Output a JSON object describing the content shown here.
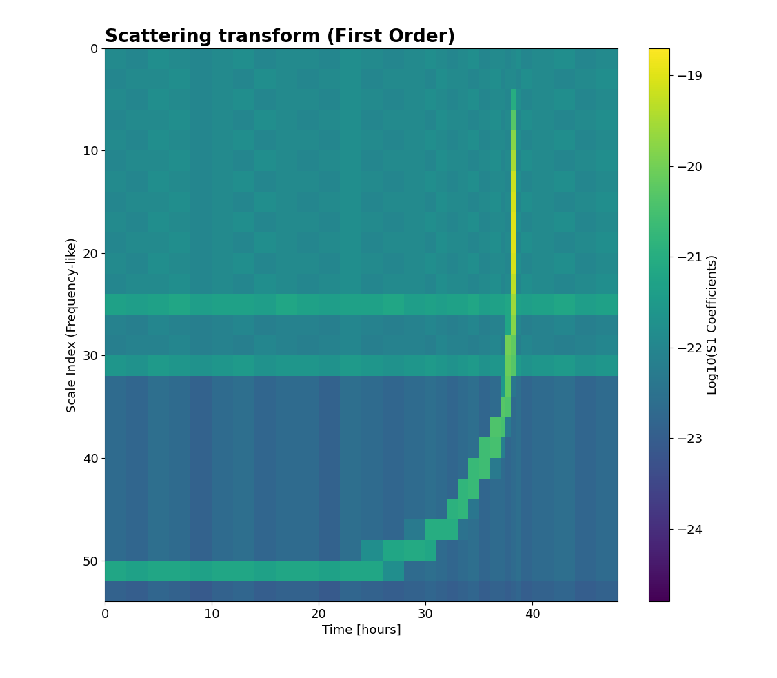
{
  "chart_data": {
    "type": "heatmap",
    "title": "Scattering transform (First Order)",
    "x_label": "Time [hours]",
    "y_label": "Scale Index (Frequency-like)",
    "xlim": [
      0,
      48
    ],
    "xticks": [
      0,
      10,
      20,
      30,
      40
    ],
    "ylim": [
      54,
      0
    ],
    "yticks": [
      0,
      10,
      20,
      30,
      40,
      50
    ],
    "x_edges": [
      0,
      2,
      4,
      6,
      8,
      10,
      12,
      14,
      16,
      18,
      20,
      22,
      24,
      26,
      28,
      30,
      31,
      32,
      33,
      34,
      35,
      36,
      37,
      37.5,
      38,
      38.5,
      39,
      40,
      42,
      44,
      46,
      48
    ],
    "y_edges": [
      0,
      2,
      4,
      6,
      8,
      10,
      12,
      14,
      16,
      18,
      20,
      22,
      24,
      26,
      28,
      30,
      32,
      34,
      36,
      38,
      40,
      42,
      44,
      46,
      48,
      50,
      52,
      54
    ],
    "cells": [
      [
        -21.9,
        -22.0,
        -21.8,
        -21.9,
        -22.0,
        -21.9,
        -21.8,
        -22.0,
        -21.9,
        -21.9,
        -22.0,
        -21.8,
        -21.9,
        -22.0,
        -21.9,
        -21.8,
        -21.9,
        -22.0,
        -21.9,
        -21.8,
        -22.0,
        -21.9,
        -21.9,
        -22.0,
        -21.9,
        -21.8,
        -22.0,
        -21.9,
        -21.8,
        -22.0,
        -21.9
      ],
      [
        -22.0,
        -21.9,
        -21.9,
        -21.8,
        -22.0,
        -21.9,
        -22.0,
        -21.8,
        -21.9,
        -22.0,
        -21.9,
        -21.8,
        -22.0,
        -21.9,
        -21.9,
        -22.0,
        -21.8,
        -21.9,
        -21.9,
        -22.0,
        -21.9,
        -21.8,
        -22.0,
        -21.9,
        -21.9,
        -22.0,
        -21.8,
        -21.9,
        -22.0,
        -21.9,
        -21.8
      ],
      [
        -21.9,
        -22.0,
        -21.8,
        -21.9,
        -22.0,
        -21.9,
        -21.8,
        -22.0,
        -21.9,
        -21.9,
        -22.0,
        -21.8,
        -21.9,
        -22.0,
        -21.9,
        -21.8,
        -21.9,
        -22.0,
        -21.9,
        -21.8,
        -22.0,
        -21.9,
        -21.9,
        -22.0,
        -21.0,
        -21.8,
        -22.0,
        -21.9,
        -21.8,
        -22.0,
        -21.9
      ],
      [
        -22.0,
        -21.9,
        -21.9,
        -21.8,
        -22.0,
        -21.9,
        -22.0,
        -21.8,
        -21.9,
        -22.0,
        -21.9,
        -21.8,
        -22.0,
        -21.9,
        -21.9,
        -22.0,
        -21.8,
        -21.9,
        -21.9,
        -22.0,
        -21.9,
        -21.8,
        -22.0,
        -21.9,
        -20.3,
        -22.0,
        -21.8,
        -21.9,
        -22.0,
        -21.9,
        -21.8
      ],
      [
        -21.9,
        -22.0,
        -21.8,
        -21.9,
        -22.0,
        -21.9,
        -21.8,
        -22.0,
        -21.9,
        -21.9,
        -22.0,
        -21.8,
        -21.9,
        -22.0,
        -21.9,
        -21.8,
        -21.9,
        -22.0,
        -21.9,
        -21.8,
        -22.0,
        -21.9,
        -21.9,
        -22.0,
        -19.8,
        -21.8,
        -22.0,
        -21.9,
        -21.8,
        -22.0,
        -21.9
      ],
      [
        -22.0,
        -21.9,
        -21.9,
        -21.8,
        -22.0,
        -21.9,
        -22.0,
        -21.8,
        -21.9,
        -22.0,
        -21.9,
        -21.8,
        -22.0,
        -21.9,
        -21.9,
        -22.0,
        -21.8,
        -21.9,
        -21.9,
        -22.0,
        -21.9,
        -21.8,
        -22.0,
        -21.9,
        -19.5,
        -22.0,
        -21.8,
        -21.9,
        -22.0,
        -21.9,
        -21.8
      ],
      [
        -21.9,
        -22.0,
        -21.8,
        -21.9,
        -22.0,
        -21.9,
        -21.8,
        -22.0,
        -21.9,
        -21.9,
        -22.0,
        -21.8,
        -21.9,
        -22.0,
        -21.9,
        -21.8,
        -21.9,
        -22.0,
        -21.9,
        -21.8,
        -22.0,
        -21.9,
        -21.9,
        -22.0,
        -19.2,
        -21.8,
        -22.0,
        -21.9,
        -21.8,
        -22.0,
        -21.9
      ],
      [
        -22.0,
        -21.9,
        -21.9,
        -21.8,
        -22.0,
        -21.9,
        -22.0,
        -21.8,
        -21.9,
        -22.0,
        -21.9,
        -21.8,
        -22.0,
        -21.9,
        -21.9,
        -22.0,
        -21.8,
        -21.9,
        -21.9,
        -22.0,
        -21.9,
        -21.8,
        -22.0,
        -21.9,
        -19.1,
        -22.0,
        -21.8,
        -21.9,
        -22.0,
        -21.9,
        -21.8
      ],
      [
        -21.9,
        -22.0,
        -21.8,
        -21.9,
        -22.0,
        -21.9,
        -21.8,
        -22.0,
        -21.9,
        -21.9,
        -22.0,
        -21.8,
        -21.9,
        -22.0,
        -21.9,
        -21.8,
        -21.9,
        -22.0,
        -21.9,
        -21.8,
        -22.0,
        -21.9,
        -21.9,
        -22.0,
        -19.0,
        -21.8,
        -22.0,
        -21.9,
        -21.8,
        -22.0,
        -21.9
      ],
      [
        -22.0,
        -21.9,
        -21.9,
        -21.8,
        -22.0,
        -21.9,
        -22.0,
        -21.8,
        -21.9,
        -22.0,
        -21.9,
        -21.8,
        -22.0,
        -21.9,
        -21.9,
        -22.0,
        -21.8,
        -21.9,
        -21.9,
        -22.0,
        -21.9,
        -21.8,
        -22.0,
        -21.9,
        -19.0,
        -22.0,
        -21.8,
        -21.9,
        -22.0,
        -21.9,
        -21.8
      ],
      [
        -21.9,
        -22.0,
        -21.8,
        -21.9,
        -22.0,
        -21.9,
        -21.8,
        -22.0,
        -21.9,
        -21.9,
        -22.0,
        -21.8,
        -21.9,
        -22.0,
        -21.9,
        -21.8,
        -21.9,
        -22.0,
        -21.9,
        -21.8,
        -22.0,
        -21.9,
        -21.9,
        -22.0,
        -19.1,
        -21.8,
        -22.0,
        -21.9,
        -21.8,
        -22.0,
        -21.9
      ],
      [
        -22.0,
        -21.9,
        -21.9,
        -21.8,
        -22.0,
        -21.9,
        -22.0,
        -21.8,
        -21.9,
        -22.0,
        -21.9,
        -21.8,
        -22.0,
        -21.9,
        -21.9,
        -22.0,
        -21.8,
        -21.9,
        -21.9,
        -22.0,
        -21.9,
        -21.8,
        -22.0,
        -21.9,
        -19.3,
        -22.0,
        -21.8,
        -21.9,
        -22.0,
        -21.9,
        -21.8
      ],
      [
        -21.3,
        -21.4,
        -21.3,
        -21.2,
        -21.4,
        -21.3,
        -21.3,
        -21.4,
        -21.2,
        -21.3,
        -21.4,
        -21.3,
        -21.3,
        -21.2,
        -21.4,
        -21.3,
        -21.4,
        -21.3,
        -21.3,
        -21.2,
        -21.4,
        -21.3,
        -21.3,
        -21.2,
        -19.6,
        -21.3,
        -21.4,
        -21.3,
        -21.2,
        -21.4,
        -21.3
      ],
      [
        -22.1,
        -22.2,
        -22.0,
        -22.1,
        -22.2,
        -22.1,
        -22.0,
        -22.2,
        -22.1,
        -22.1,
        -22.2,
        -22.0,
        -22.1,
        -22.2,
        -22.1,
        -22.0,
        -22.1,
        -22.2,
        -22.1,
        -22.0,
        -22.2,
        -22.1,
        -22.1,
        -21.2,
        -19.8,
        -22.0,
        -22.2,
        -22.1,
        -22.0,
        -22.2,
        -22.1
      ],
      [
        -22.2,
        -22.1,
        -22.1,
        -22.0,
        -22.2,
        -22.1,
        -22.2,
        -22.0,
        -22.1,
        -22.2,
        -22.1,
        -22.0,
        -22.2,
        -22.1,
        -22.1,
        -22.2,
        -22.0,
        -22.1,
        -22.1,
        -22.2,
        -22.1,
        -22.0,
        -22.2,
        -20.0,
        -20.2,
        -22.2,
        -22.0,
        -22.1,
        -22.2,
        -22.1,
        -22.0
      ],
      [
        -21.6,
        -21.7,
        -21.5,
        -21.6,
        -21.7,
        -21.6,
        -21.5,
        -21.7,
        -21.6,
        -21.6,
        -21.7,
        -21.5,
        -21.6,
        -21.7,
        -21.6,
        -21.5,
        -21.6,
        -21.7,
        -21.6,
        -21.5,
        -21.7,
        -21.6,
        -21.6,
        -20.1,
        -20.3,
        -21.5,
        -21.7,
        -21.6,
        -21.5,
        -21.7,
        -21.6
      ],
      [
        -22.7,
        -22.8,
        -22.6,
        -22.7,
        -22.9,
        -22.7,
        -22.6,
        -22.8,
        -22.7,
        -22.7,
        -22.9,
        -22.6,
        -22.7,
        -22.8,
        -22.7,
        -22.6,
        -22.7,
        -22.8,
        -22.7,
        -22.6,
        -22.8,
        -22.7,
        -21.5,
        -20.2,
        -22.4,
        -22.6,
        -22.8,
        -22.7,
        -22.6,
        -22.8,
        -22.7
      ],
      [
        -22.7,
        -22.8,
        -22.6,
        -22.7,
        -22.9,
        -22.7,
        -22.6,
        -22.8,
        -22.7,
        -22.7,
        -22.9,
        -22.6,
        -22.7,
        -22.8,
        -22.7,
        -22.6,
        -22.7,
        -22.8,
        -22.7,
        -22.6,
        -22.8,
        -22.7,
        -20.3,
        -20.4,
        -22.7,
        -22.6,
        -22.8,
        -22.7,
        -22.6,
        -22.8,
        -22.7
      ],
      [
        -22.7,
        -22.8,
        -22.6,
        -22.7,
        -22.9,
        -22.7,
        -22.6,
        -22.8,
        -22.7,
        -22.7,
        -22.9,
        -22.6,
        -22.7,
        -22.8,
        -22.7,
        -22.6,
        -22.7,
        -22.8,
        -22.7,
        -22.6,
        -22.8,
        -20.4,
        -20.5,
        -22.3,
        -22.7,
        -22.6,
        -22.8,
        -22.7,
        -22.6,
        -22.8,
        -22.7
      ],
      [
        -22.7,
        -22.8,
        -22.6,
        -22.7,
        -22.9,
        -22.7,
        -22.6,
        -22.8,
        -22.7,
        -22.7,
        -22.9,
        -22.6,
        -22.7,
        -22.8,
        -22.7,
        -22.6,
        -22.7,
        -22.8,
        -22.7,
        -22.6,
        -20.6,
        -20.5,
        -22.2,
        -22.8,
        -22.7,
        -22.6,
        -22.8,
        -22.7,
        -22.6,
        -22.8,
        -22.7
      ],
      [
        -22.7,
        -22.8,
        -22.6,
        -22.7,
        -22.9,
        -22.7,
        -22.6,
        -22.8,
        -22.7,
        -22.7,
        -22.9,
        -22.6,
        -22.7,
        -22.8,
        -22.7,
        -22.6,
        -22.7,
        -22.8,
        -22.7,
        -20.7,
        -20.6,
        -22.3,
        -22.7,
        -22.8,
        -22.7,
        -22.6,
        -22.8,
        -22.7,
        -22.6,
        -22.8,
        -22.7
      ],
      [
        -22.7,
        -22.8,
        -22.6,
        -22.7,
        -22.9,
        -22.7,
        -22.6,
        -22.8,
        -22.7,
        -22.7,
        -22.9,
        -22.6,
        -22.7,
        -22.8,
        -22.7,
        -22.6,
        -22.7,
        -22.8,
        -20.8,
        -20.7,
        -22.8,
        -22.7,
        -22.7,
        -22.8,
        -22.7,
        -22.6,
        -22.8,
        -22.7,
        -22.6,
        -22.8,
        -22.7
      ],
      [
        -22.7,
        -22.8,
        -22.6,
        -22.7,
        -22.9,
        -22.7,
        -22.6,
        -22.8,
        -22.7,
        -22.7,
        -22.9,
        -22.6,
        -22.7,
        -22.8,
        -22.7,
        -22.6,
        -22.7,
        -20.9,
        -20.8,
        -22.4,
        -22.8,
        -22.7,
        -22.7,
        -22.8,
        -22.7,
        -22.6,
        -22.8,
        -22.7,
        -22.6,
        -22.8,
        -22.7
      ],
      [
        -22.7,
        -22.8,
        -22.6,
        -22.7,
        -22.9,
        -22.7,
        -22.6,
        -22.8,
        -22.7,
        -22.7,
        -22.9,
        -22.6,
        -22.7,
        -22.8,
        -22.3,
        -21.0,
        -21.0,
        -21.0,
        -22.5,
        -22.6,
        -22.8,
        -22.7,
        -22.7,
        -22.8,
        -22.7,
        -22.6,
        -22.8,
        -22.7,
        -22.6,
        -22.8,
        -22.7
      ],
      [
        -22.7,
        -22.8,
        -22.6,
        -22.7,
        -22.9,
        -22.7,
        -22.6,
        -22.8,
        -22.7,
        -22.7,
        -22.9,
        -22.6,
        -21.8,
        -21.2,
        -21.1,
        -21.2,
        -22.7,
        -22.8,
        -22.7,
        -22.6,
        -22.8,
        -22.7,
        -22.7,
        -22.8,
        -22.7,
        -22.6,
        -22.8,
        -22.7,
        -22.6,
        -22.8,
        -22.7
      ],
      [
        -21.2,
        -21.3,
        -21.2,
        -21.2,
        -21.3,
        -21.2,
        -21.2,
        -21.3,
        -21.2,
        -21.2,
        -21.3,
        -21.2,
        -21.2,
        -21.8,
        -22.7,
        -22.6,
        -22.7,
        -22.8,
        -22.7,
        -22.6,
        -22.8,
        -22.7,
        -22.7,
        -22.8,
        -22.7,
        -22.6,
        -22.8,
        -22.7,
        -22.6,
        -22.8,
        -22.7
      ],
      [
        -22.9,
        -23.0,
        -22.8,
        -22.9,
        -23.1,
        -22.9,
        -22.8,
        -23.0,
        -22.9,
        -22.9,
        -23.1,
        -22.8,
        -22.9,
        -23.0,
        -22.9,
        -22.8,
        -22.9,
        -23.0,
        -22.9,
        -22.8,
        -23.0,
        -22.9,
        -22.9,
        -23.0,
        -22.9,
        -22.8,
        -23.0,
        -22.9,
        -22.8,
        -23.0,
        -22.9
      ]
    ],
    "colorbar": {
      "label": "Log10(S1 Coefficients)",
      "range": [
        -24.8,
        -18.7
      ],
      "ticks": [
        {
          "value": -24,
          "label": "−24"
        },
        {
          "value": -23,
          "label": "−23"
        },
        {
          "value": -22,
          "label": "−22"
        },
        {
          "value": -21,
          "label": "−21"
        },
        {
          "value": -20,
          "label": "−20"
        },
        {
          "value": -19,
          "label": "−19"
        }
      ]
    }
  }
}
